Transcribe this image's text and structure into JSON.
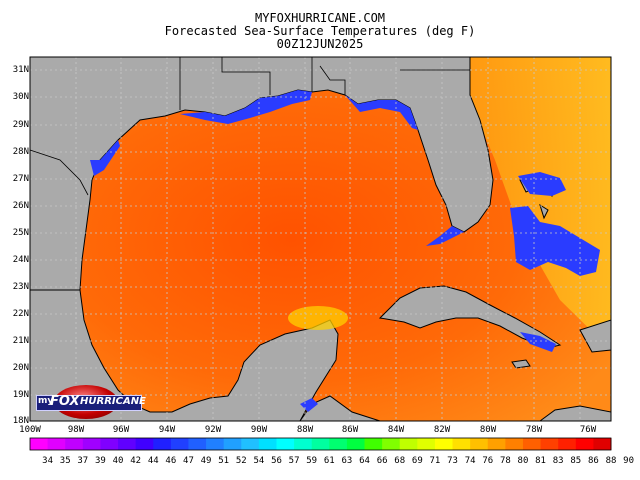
{
  "header": {
    "site": "MYFOXHURRICANE.COM",
    "product": "Forecasted Sea-Surface Temperatures (deg F)",
    "valid_time": "00Z12JUN2025"
  },
  "map": {
    "lat_labels": [
      "31N",
      "30N",
      "29N",
      "28N",
      "27N",
      "26N",
      "25N",
      "24N",
      "23N",
      "22N",
      "21N",
      "20N",
      "19N",
      "18N"
    ],
    "lon_labels": [
      "100W",
      "98W",
      "96W",
      "94W",
      "92W",
      "90W",
      "88W",
      "86W",
      "84W",
      "82W",
      "80W",
      "78W",
      "76W"
    ],
    "land_color": "#aaaaaa",
    "water_warm_color": "#ff7a10",
    "water_hot_color": "#ff5a00",
    "cool_shelf_color": "#2a3cff",
    "grid": true
  },
  "colorbar": {
    "labels": [
      "34",
      "35",
      "37",
      "39",
      "40",
      "42",
      "44",
      "46",
      "47",
      "49",
      "51",
      "52",
      "54",
      "56",
      "57",
      "59",
      "61",
      "63",
      "64",
      "66",
      "68",
      "69",
      "71",
      "73",
      "74",
      "76",
      "78",
      "80",
      "81",
      "83",
      "85",
      "86",
      "88",
      "90"
    ],
    "colors": [
      "#ff00ff",
      "#e000ff",
      "#c000ff",
      "#a000ff",
      "#8000ff",
      "#6000ff",
      "#4000ff",
      "#2020ff",
      "#2040ff",
      "#2060ff",
      "#2080ff",
      "#20a0ff",
      "#20c0ff",
      "#00e0ff",
      "#00ffff",
      "#00ffd0",
      "#00ffa0",
      "#00ff70",
      "#00ff40",
      "#40ff00",
      "#80ff00",
      "#c0ff00",
      "#e0ff00",
      "#ffff00",
      "#ffe000",
      "#ffc000",
      "#ffa000",
      "#ff8000",
      "#ff6000",
      "#ff4000",
      "#ff2000",
      "#ff0000",
      "#e00000"
    ]
  },
  "logo": {
    "my": "my",
    "fox": "FOX",
    "hurricane": "HURRICANE"
  }
}
